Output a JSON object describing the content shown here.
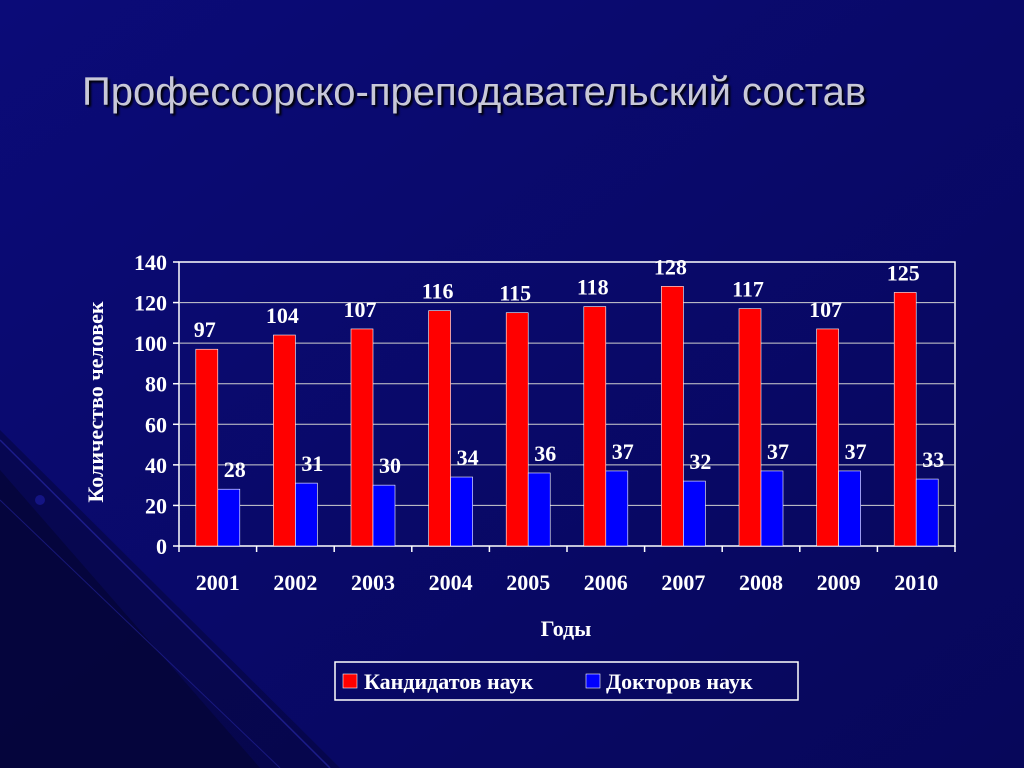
{
  "slide": {
    "title": "Профессорско-преподавательский состав",
    "background": "#0a0a6e"
  },
  "chart_data": {
    "type": "bar",
    "xlabel": "Годы",
    "ylabel": "Количество человек",
    "ylim": [
      0,
      140
    ],
    "ytick_step": 20,
    "grid": true,
    "legend_position": "bottom",
    "categories": [
      "2001",
      "2002",
      "2003",
      "2004",
      "2005",
      "2006",
      "2007",
      "2008",
      "2009",
      "2010"
    ],
    "series": [
      {
        "name": "Кандидатов наук",
        "color": "#ff0000",
        "values": [
          97,
          104,
          107,
          116,
          115,
          118,
          128,
          117,
          107,
          125
        ]
      },
      {
        "name": "Докторов наук",
        "color": "#0000ff",
        "values": [
          28,
          31,
          30,
          34,
          36,
          37,
          32,
          37,
          37,
          33
        ]
      }
    ]
  }
}
